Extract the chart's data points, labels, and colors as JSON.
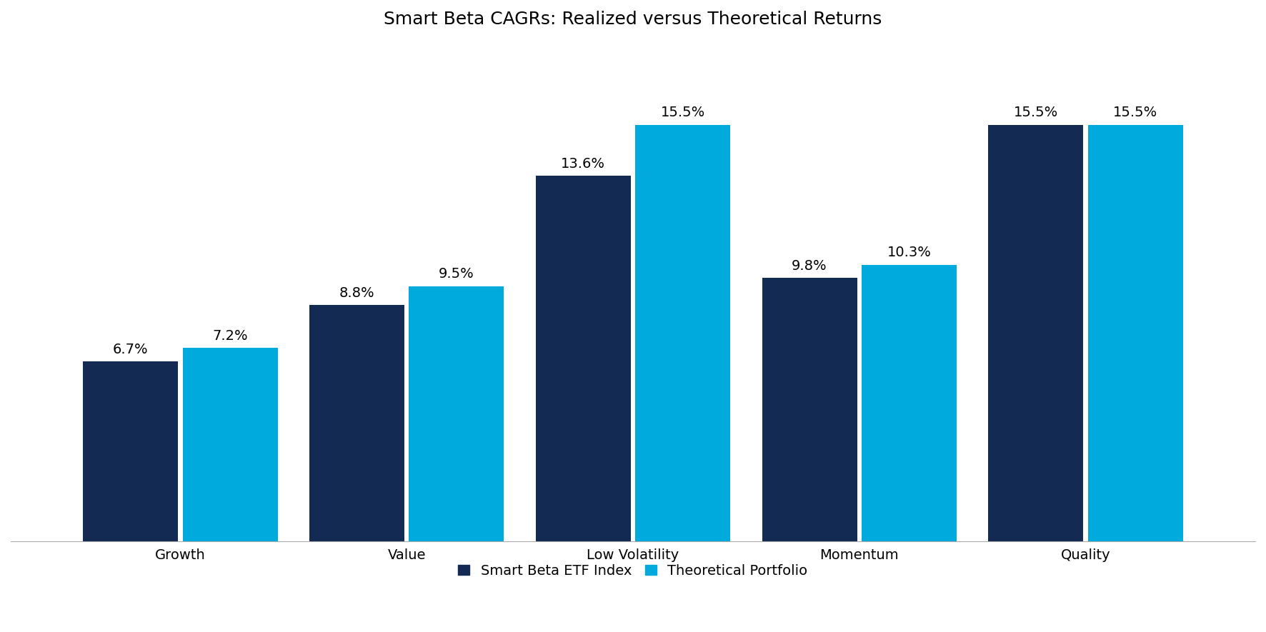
{
  "title": "Smart Beta CAGRs: Realized versus Theoretical Returns",
  "categories": [
    "Growth",
    "Value",
    "Low Volatility",
    "Momentum",
    "Quality"
  ],
  "etf_values": [
    6.7,
    8.8,
    13.6,
    9.8,
    15.5
  ],
  "theoretical_values": [
    7.2,
    9.5,
    15.5,
    10.3,
    15.5
  ],
  "etf_color": "#132B52",
  "theoretical_color": "#00AADD",
  "etf_label": "Smart Beta ETF Index",
  "theoretical_label": "Theoretical Portfolio",
  "bar_width": 0.42,
  "bar_gap": 0.02,
  "ylim": [
    0,
    18.5
  ],
  "title_fontsize": 18,
  "tick_fontsize": 14,
  "legend_fontsize": 14,
  "value_fontsize": 14,
  "background_color": "#ffffff"
}
